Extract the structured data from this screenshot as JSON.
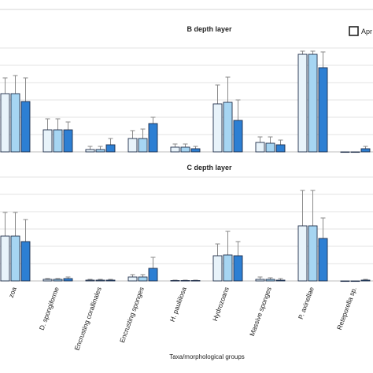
{
  "chart_data": [
    {
      "type": "bar",
      "title": "B depth layer",
      "categories": [
        "Eunicella cavolini / Alcyonacea",
        "D. spongiforme",
        "Encrusting corallinales",
        "Encrusting sponges",
        "H. pauliilosa",
        "Hydrozoans",
        "Massive sponges",
        "P. axinellae",
        "Reteporella sp."
      ],
      "series": [
        {
          "name": "April",
          "color": "#e8f3fa",
          "values": [
            7.4,
            2.8,
            0.3,
            1.7,
            0.6,
            6.1,
            1.2,
            12.4,
            0.0
          ],
          "errors": [
            2.0,
            1.4,
            0.4,
            1.0,
            0.4,
            2.4,
            0.7,
            0.4,
            0.0
          ]
        },
        {
          "name": "",
          "color": "#a6d5f2",
          "values": [
            7.4,
            2.8,
            0.3,
            1.7,
            0.6,
            6.3,
            1.1,
            12.4,
            0.0
          ],
          "errors": [
            2.3,
            1.4,
            0.4,
            1.2,
            0.4,
            3.2,
            0.8,
            0.4,
            0.0
          ]
        },
        {
          "name": "",
          "color": "#2d7fd3",
          "values": [
            6.4,
            2.8,
            0.9,
            3.6,
            0.4,
            4.0,
            0.9,
            10.7,
            0.4
          ],
          "errors": [
            3.0,
            1.0,
            0.8,
            0.8,
            0.3,
            2.6,
            0.6,
            2.0,
            0.3
          ]
        }
      ],
      "legend": "top-right"
    },
    {
      "type": "bar",
      "title": "C depth layer",
      "categories": [
        "Eunicella cavolini / Alcyonacea",
        "D. spongiforme",
        "Encrusting corallinales",
        "Encrusting sponges",
        "H. pauliilosa",
        "Hydrozoans",
        "Massive sponges",
        "P. axinellae",
        "Reteporella sp."
      ],
      "series": [
        {
          "name": "",
          "color": "#e8f3fa",
          "values": [
            5.7,
            0.2,
            0.1,
            0.5,
            0.05,
            3.2,
            0.2,
            7.0,
            0.0
          ],
          "errors": [
            3.0,
            0.1,
            0.1,
            0.3,
            0.05,
            1.5,
            0.3,
            4.5,
            0.0
          ]
        },
        {
          "name": "",
          "color": "#a6d5f2",
          "values": [
            5.7,
            0.2,
            0.1,
            0.5,
            0.05,
            3.3,
            0.2,
            7.0,
            0.0
          ],
          "errors": [
            3.0,
            0.1,
            0.1,
            0.3,
            0.05,
            3.0,
            0.2,
            4.5,
            0.0
          ]
        },
        {
          "name": "",
          "color": "#2d7fd3",
          "values": [
            5.0,
            0.3,
            0.1,
            1.6,
            0.05,
            3.2,
            0.1,
            5.4,
            0.1
          ],
          "errors": [
            2.8,
            0.2,
            0.1,
            1.4,
            0.05,
            1.8,
            0.2,
            2.6,
            0.1
          ]
        }
      ]
    }
  ],
  "x_tick_labels": [
    "zoa",
    "D. spongiforme",
    "Encrusting corallinales",
    "Encrusting sponges",
    "H. pauliilosa",
    "Hydrozoans",
    "Massive sponges",
    "P. axinellae",
    "Reteporella sp."
  ],
  "xlabel": "Taxa/morphological groups",
  "legend_label": "Apr"
}
